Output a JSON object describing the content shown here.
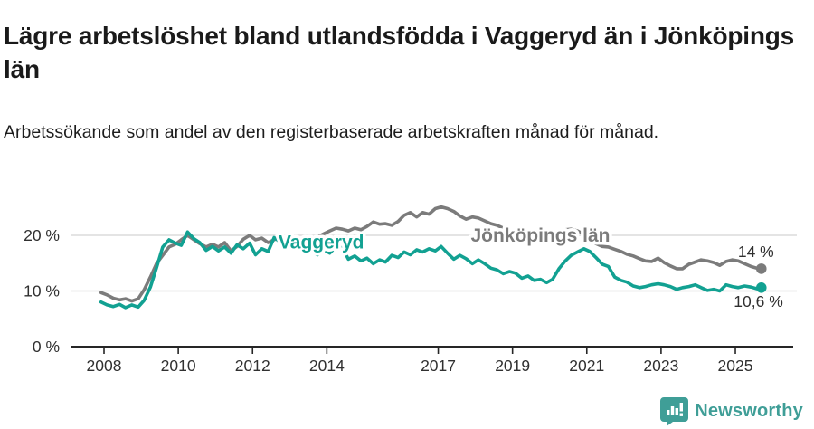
{
  "header": {
    "title": "Lägre arbetslöshet bland utlandsfödda i Vaggeryd än i Jönköpings län",
    "subtitle": "Arbetssökande som andel av den registerbaserade arbetskraften månad för månad."
  },
  "footer": {
    "brand": "Newsworthy",
    "brand_icon": "bar-chart-speech-bubble-icon"
  },
  "colors": {
    "vaggeryd_line": "#12a192",
    "jonkoping_line": "#7b7b7b",
    "axis_text": "#303030",
    "axis_line": "#262626",
    "gridline": "#dcdcdc",
    "title_text": "#1a1a1a",
    "brand_teal": "#3f9e97"
  },
  "chart_data": {
    "type": "line",
    "title": "Lägre arbetslöshet bland utlandsfödda i Vaggeryd än i Jönköpings län",
    "subtitle": "Arbetssökande som andel av den registerbaserade arbetskraften månad för månad.",
    "xlabel": "",
    "ylabel": "",
    "x_unit": "decimal year (monthly data)",
    "y_unit": "percent",
    "ylim": [
      0,
      26.5
    ],
    "xlim": [
      2007.1,
      2026.6
    ],
    "grid": "horizontal",
    "legend_position": "inline-labels-on-lines",
    "yticks": [
      {
        "value": 0,
        "label": "0 %"
      },
      {
        "value": 10,
        "label": "10 %"
      },
      {
        "value": 20,
        "label": "20 %"
      }
    ],
    "xticks": [
      {
        "value": 2008,
        "label": "2008"
      },
      {
        "value": 2010,
        "label": "2010"
      },
      {
        "value": 2012,
        "label": "2012"
      },
      {
        "value": 2014,
        "label": "2014"
      },
      {
        "value": 2017,
        "label": "2017"
      },
      {
        "value": 2019,
        "label": "2019"
      },
      {
        "value": 2021,
        "label": "2021"
      },
      {
        "value": 2023,
        "label": "2023"
      },
      {
        "value": 2025,
        "label": "2025"
      }
    ],
    "series": [
      {
        "name": "Jönköpings län",
        "color": "#7b7b7b",
        "end_label": "14 %",
        "end_value": 14.0,
        "points": [
          [
            2007.92,
            9.7
          ],
          [
            2008.08,
            9.3
          ],
          [
            2008.25,
            8.7
          ],
          [
            2008.42,
            8.4
          ],
          [
            2008.58,
            8.6
          ],
          [
            2008.75,
            8.2
          ],
          [
            2008.92,
            8.6
          ],
          [
            2009.08,
            10.2
          ],
          [
            2009.25,
            12.5
          ],
          [
            2009.42,
            15.0
          ],
          [
            2009.58,
            16.4
          ],
          [
            2009.75,
            17.9
          ],
          [
            2009.92,
            18.4
          ],
          [
            2010.08,
            19.2
          ],
          [
            2010.25,
            20.0
          ],
          [
            2010.42,
            19.2
          ],
          [
            2010.58,
            18.5
          ],
          [
            2010.75,
            17.9
          ],
          [
            2010.92,
            18.4
          ],
          [
            2011.08,
            17.9
          ],
          [
            2011.25,
            18.7
          ],
          [
            2011.42,
            17.2
          ],
          [
            2011.58,
            18.0
          ],
          [
            2011.75,
            19.3
          ],
          [
            2011.92,
            20.0
          ],
          [
            2012.08,
            19.2
          ],
          [
            2012.25,
            19.5
          ],
          [
            2012.42,
            18.7
          ],
          [
            2012.58,
            19.2
          ],
          [
            2012.75,
            19.7
          ],
          [
            2012.92,
            19.2
          ],
          [
            2013.08,
            19.8
          ],
          [
            2013.25,
            19.4
          ],
          [
            2013.42,
            19.2
          ],
          [
            2013.58,
            18.8
          ],
          [
            2013.75,
            19.7
          ],
          [
            2013.92,
            20.3
          ],
          [
            2014.08,
            20.8
          ],
          [
            2014.25,
            21.3
          ],
          [
            2014.42,
            21.1
          ],
          [
            2014.58,
            20.8
          ],
          [
            2014.75,
            21.3
          ],
          [
            2014.92,
            21.0
          ],
          [
            2015.08,
            21.6
          ],
          [
            2015.25,
            22.4
          ],
          [
            2015.42,
            22.0
          ],
          [
            2015.58,
            22.1
          ],
          [
            2015.75,
            21.8
          ],
          [
            2015.92,
            22.5
          ],
          [
            2016.08,
            23.6
          ],
          [
            2016.25,
            24.1
          ],
          [
            2016.42,
            23.3
          ],
          [
            2016.58,
            24.1
          ],
          [
            2016.75,
            23.8
          ],
          [
            2016.92,
            24.8
          ],
          [
            2017.08,
            25.1
          ],
          [
            2017.25,
            24.8
          ],
          [
            2017.42,
            24.3
          ],
          [
            2017.58,
            23.5
          ],
          [
            2017.75,
            22.9
          ],
          [
            2017.92,
            23.3
          ],
          [
            2018.08,
            23.1
          ],
          [
            2018.25,
            22.6
          ],
          [
            2018.42,
            22.1
          ],
          [
            2018.58,
            21.8
          ],
          [
            2018.75,
            21.3
          ],
          [
            2018.92,
            21.0
          ],
          [
            2019.08,
            20.6
          ],
          [
            2019.25,
            20.2
          ],
          [
            2019.42,
            19.9
          ],
          [
            2019.58,
            19.7
          ],
          [
            2019.75,
            19.6
          ],
          [
            2019.92,
            19.8
          ],
          [
            2020.08,
            20.0
          ],
          [
            2020.25,
            20.6
          ],
          [
            2020.42,
            21.0
          ],
          [
            2020.58,
            21.1
          ],
          [
            2020.75,
            20.8
          ],
          [
            2020.92,
            20.2
          ],
          [
            2021.08,
            19.3
          ],
          [
            2021.25,
            18.5
          ],
          [
            2021.42,
            18.0
          ],
          [
            2021.58,
            17.9
          ],
          [
            2021.75,
            17.5
          ],
          [
            2021.92,
            17.1
          ],
          [
            2022.08,
            16.6
          ],
          [
            2022.25,
            16.3
          ],
          [
            2022.42,
            15.8
          ],
          [
            2022.58,
            15.4
          ],
          [
            2022.75,
            15.3
          ],
          [
            2022.92,
            15.9
          ],
          [
            2023.08,
            15.1
          ],
          [
            2023.25,
            14.5
          ],
          [
            2023.42,
            14.0
          ],
          [
            2023.58,
            14.0
          ],
          [
            2023.75,
            14.8
          ],
          [
            2023.92,
            15.2
          ],
          [
            2024.08,
            15.6
          ],
          [
            2024.25,
            15.4
          ],
          [
            2024.42,
            15.1
          ],
          [
            2024.58,
            14.6
          ],
          [
            2024.75,
            15.3
          ],
          [
            2024.92,
            15.6
          ],
          [
            2025.08,
            15.4
          ],
          [
            2025.25,
            14.9
          ],
          [
            2025.42,
            14.4
          ],
          [
            2025.58,
            14.1
          ],
          [
            2025.7,
            14.0
          ]
        ]
      },
      {
        "name": "Vaggeryd",
        "color": "#12a192",
        "end_label": "10,6 %",
        "end_value": 10.6,
        "points": [
          [
            2007.92,
            8.0
          ],
          [
            2008.08,
            7.5
          ],
          [
            2008.25,
            7.2
          ],
          [
            2008.42,
            7.6
          ],
          [
            2008.58,
            7.0
          ],
          [
            2008.75,
            7.5
          ],
          [
            2008.92,
            7.1
          ],
          [
            2009.08,
            8.3
          ],
          [
            2009.25,
            10.7
          ],
          [
            2009.42,
            14.3
          ],
          [
            2009.58,
            17.9
          ],
          [
            2009.75,
            19.2
          ],
          [
            2009.92,
            18.6
          ],
          [
            2010.08,
            18.2
          ],
          [
            2010.25,
            20.6
          ],
          [
            2010.42,
            19.4
          ],
          [
            2010.58,
            18.7
          ],
          [
            2010.75,
            17.3
          ],
          [
            2010.92,
            18.0
          ],
          [
            2011.08,
            17.2
          ],
          [
            2011.25,
            17.9
          ],
          [
            2011.42,
            16.8
          ],
          [
            2011.58,
            18.3
          ],
          [
            2011.75,
            17.6
          ],
          [
            2011.92,
            18.6
          ],
          [
            2012.08,
            16.5
          ],
          [
            2012.25,
            17.6
          ],
          [
            2012.42,
            17.1
          ],
          [
            2012.58,
            19.6
          ],
          [
            2012.75,
            18.8
          ],
          [
            2012.92,
            18.3
          ],
          [
            2013.08,
            19.4
          ],
          [
            2013.25,
            18.0
          ],
          [
            2013.42,
            19.2
          ],
          [
            2013.58,
            17.2
          ],
          [
            2013.75,
            16.5
          ],
          [
            2013.92,
            17.4
          ],
          [
            2014.08,
            16.8
          ],
          [
            2014.25,
            18.0
          ],
          [
            2014.42,
            17.8
          ],
          [
            2014.58,
            15.7
          ],
          [
            2014.75,
            16.3
          ],
          [
            2014.92,
            15.4
          ],
          [
            2015.08,
            15.9
          ],
          [
            2015.25,
            14.9
          ],
          [
            2015.42,
            15.6
          ],
          [
            2015.58,
            15.2
          ],
          [
            2015.75,
            16.4
          ],
          [
            2015.92,
            16.0
          ],
          [
            2016.08,
            17.0
          ],
          [
            2016.25,
            16.5
          ],
          [
            2016.42,
            17.4
          ],
          [
            2016.58,
            17.0
          ],
          [
            2016.75,
            17.6
          ],
          [
            2016.92,
            17.2
          ],
          [
            2017.08,
            18.0
          ],
          [
            2017.25,
            16.8
          ],
          [
            2017.42,
            15.7
          ],
          [
            2017.58,
            16.4
          ],
          [
            2017.75,
            15.8
          ],
          [
            2017.92,
            14.9
          ],
          [
            2018.08,
            15.6
          ],
          [
            2018.25,
            14.9
          ],
          [
            2018.42,
            14.1
          ],
          [
            2018.58,
            13.8
          ],
          [
            2018.75,
            13.1
          ],
          [
            2018.92,
            13.5
          ],
          [
            2019.08,
            13.2
          ],
          [
            2019.25,
            12.3
          ],
          [
            2019.42,
            12.7
          ],
          [
            2019.58,
            11.9
          ],
          [
            2019.75,
            12.1
          ],
          [
            2019.92,
            11.5
          ],
          [
            2020.08,
            12.1
          ],
          [
            2020.25,
            14.0
          ],
          [
            2020.42,
            15.4
          ],
          [
            2020.58,
            16.4
          ],
          [
            2020.75,
            17.0
          ],
          [
            2020.92,
            17.6
          ],
          [
            2021.08,
            17.1
          ],
          [
            2021.25,
            16.0
          ],
          [
            2021.42,
            14.8
          ],
          [
            2021.58,
            14.4
          ],
          [
            2021.75,
            12.5
          ],
          [
            2021.92,
            11.9
          ],
          [
            2022.08,
            11.6
          ],
          [
            2022.25,
            10.9
          ],
          [
            2022.42,
            10.6
          ],
          [
            2022.58,
            10.8
          ],
          [
            2022.75,
            11.1
          ],
          [
            2022.92,
            11.3
          ],
          [
            2023.08,
            11.1
          ],
          [
            2023.25,
            10.8
          ],
          [
            2023.42,
            10.3
          ],
          [
            2023.58,
            10.6
          ],
          [
            2023.75,
            10.8
          ],
          [
            2023.92,
            11.1
          ],
          [
            2024.08,
            10.6
          ],
          [
            2024.25,
            10.1
          ],
          [
            2024.42,
            10.3
          ],
          [
            2024.58,
            10.0
          ],
          [
            2024.75,
            11.1
          ],
          [
            2024.92,
            10.8
          ],
          [
            2025.08,
            10.6
          ],
          [
            2025.25,
            10.9
          ],
          [
            2025.42,
            10.7
          ],
          [
            2025.58,
            10.4
          ],
          [
            2025.7,
            10.6
          ]
        ]
      }
    ],
    "series_labels": [
      {
        "text": "Vaggeryd",
        "x": 2013.85,
        "y": 18.8,
        "color": "#12a192"
      },
      {
        "text": "Jönköpings län",
        "x": 2019.75,
        "y": 20.0,
        "color": "#7b7b7b"
      }
    ]
  }
}
